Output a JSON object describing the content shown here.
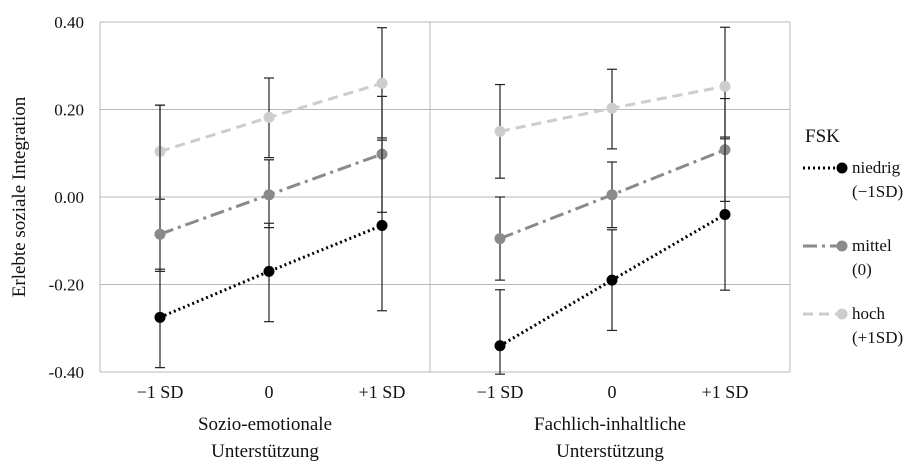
{
  "chart_data": {
    "type": "line",
    "ylabel": "Erlebte soziale Integration",
    "ylim": [
      -0.4,
      0.4
    ],
    "yticks": [
      "0.40",
      "0.20",
      "0.00",
      "-0.20",
      "-0.40"
    ],
    "ytick_values": [
      0.4,
      0.2,
      0.0,
      -0.2,
      -0.4
    ],
    "categories": [
      "−1 SD",
      "0",
      "+1 SD"
    ],
    "grid": "horizontal",
    "legend": {
      "title": "FSK",
      "placement": "right",
      "entries": [
        {
          "line1": "niedrig",
          "line2": "(−1SD)"
        },
        {
          "line1": "mittel",
          "line2": "(0)"
        },
        {
          "line1": "hoch",
          "line2": "(+1SD)"
        }
      ]
    },
    "styles": [
      {
        "color": "#000000",
        "dash": "2,3"
      },
      {
        "color": "#8a8a8a",
        "dash": "14,5,3,5"
      },
      {
        "color": "#cdcdcd",
        "dash": "10,6"
      }
    ],
    "panels": [
      {
        "xlabel_line1": "Sozio-emotionale",
        "xlabel_line2": "Unterstützung",
        "series": [
          {
            "values": [
              -0.275,
              -0.17,
              -0.065
            ],
            "lower": [
              -0.39,
              -0.285,
              -0.26
            ],
            "upper": [
              -0.165,
              -0.06,
              0.13
            ]
          },
          {
            "values": [
              -0.085,
              0.005,
              0.098
            ],
            "lower": [
              -0.17,
              -0.07,
              -0.035
            ],
            "upper": [
              0.21,
              0.085,
              0.23
            ]
          },
          {
            "values": [
              0.104,
              0.182,
              0.26
            ],
            "lower": [
              -0.005,
              0.09,
              0.135
            ],
            "upper": [
              0.21,
              0.272,
              0.387
            ]
          }
        ]
      },
      {
        "xlabel_line1": "Fachlich-inhaltliche",
        "xlabel_line2": "Unterstützung",
        "series": [
          {
            "values": [
              -0.34,
              -0.19,
              -0.04
            ],
            "lower": [
              -0.405,
              -0.305,
              -0.213
            ],
            "upper": [
              -0.212,
              -0.075,
              0.133
            ]
          },
          {
            "values": [
              -0.095,
              0.005,
              0.108
            ],
            "lower": [
              -0.19,
              -0.07,
              -0.01
            ],
            "upper": [
              0.0,
              0.08,
              0.225
            ]
          },
          {
            "values": [
              0.15,
              0.203,
              0.253
            ],
            "lower": [
              0.043,
              0.11,
              0.137
            ],
            "upper": [
              0.257,
              0.292,
              0.388
            ]
          }
        ]
      }
    ]
  }
}
